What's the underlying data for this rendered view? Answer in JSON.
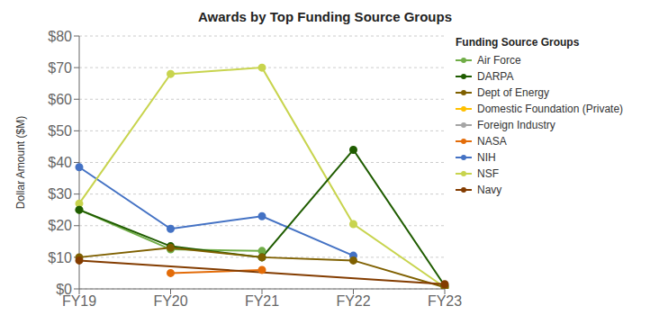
{
  "chart_data": {
    "type": "line",
    "title": "Awards by Top Funding Source Groups",
    "y_label": "Dollar Amount ($M)",
    "legend_title": "Funding Source Groups",
    "legend": "right",
    "grid": true,
    "marker": "circle",
    "categories": [
      "FY19",
      "FY20",
      "FY21",
      "FY22",
      "FY23"
    ],
    "ylim": [
      0,
      80
    ],
    "yticks": [
      {
        "value": 0,
        "label": "$0"
      },
      {
        "value": 10,
        "label": "$10"
      },
      {
        "value": 20,
        "label": "$20"
      },
      {
        "value": 30,
        "label": "$30"
      },
      {
        "value": 40,
        "label": "$40"
      },
      {
        "value": 50,
        "label": "$50"
      },
      {
        "value": 60,
        "label": "$60"
      },
      {
        "value": 70,
        "label": "$70"
      },
      {
        "value": 80,
        "label": "$80"
      }
    ],
    "series": [
      {
        "name": "NIH",
        "color": "#4472C4",
        "values": [
          38.5,
          19.0,
          23.0,
          10.5,
          null
        ]
      },
      {
        "name": "NSF",
        "color": "#c8d44e",
        "values": [
          27.0,
          68.0,
          70.0,
          20.5,
          0.5
        ]
      },
      {
        "name": "Domestic Foundation (Private)",
        "color": "#FFC000",
        "values": [
          null,
          null,
          null,
          null,
          null
        ]
      },
      {
        "name": "Air Force",
        "color": "#70AD47",
        "values": [
          25.0,
          12.5,
          12.0,
          null,
          null
        ]
      },
      {
        "name": "DARPA",
        "color": "#1F5C00",
        "values": [
          25.0,
          13.5,
          10.0,
          44.0,
          1.0
        ]
      },
      {
        "name": "Dept of Energy",
        "color": "#7F6000",
        "values": [
          10.0,
          13.0,
          10.0,
          9.0,
          0.5
        ]
      },
      {
        "name": "Foreign Industry",
        "color": "#A5A5A5",
        "values": [
          null,
          null,
          null,
          null,
          null
        ]
      },
      {
        "name": "NASA",
        "color": "#E36C09",
        "values": [
          null,
          5.0,
          6.0,
          null,
          null
        ]
      },
      {
        "name": "Navy",
        "color": "#833C00",
        "values": [
          9.0,
          null,
          null,
          null,
          1.5
        ]
      }
    ]
  }
}
